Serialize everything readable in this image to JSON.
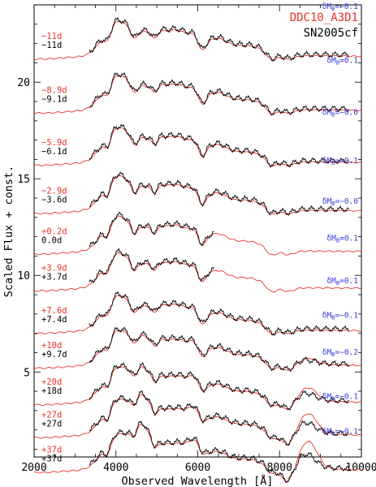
{
  "chart_data": {
    "type": "line",
    "xlabel": "Observed Wavelength  [Å]",
    "ylabel": "Scaled Flux + const.",
    "xlim": [
      2000,
      10000
    ],
    "ylim": [
      0.6,
      24.0
    ],
    "x_ticks": [
      2000,
      4000,
      6000,
      8000,
      10000
    ],
    "y_ticks": [
      5,
      10,
      15,
      20
    ],
    "legend": [
      {
        "name": "DDC10_A3D1",
        "color": "#e8322b"
      },
      {
        "name": "SN2005cf",
        "color": "#000000"
      }
    ],
    "legend_position": "top-right",
    "colors": {
      "model": "#e8322b",
      "observed": "#000000",
      "delta": "#3c3cd6"
    },
    "epochs": [
      {
        "model_phase": "−11d",
        "obs_phase": "−11d",
        "delta_mb": "−0.1",
        "delta_display": "δM",
        "offset": 21.2,
        "obs_range": [
          3350,
          9700
        ]
      },
      {
        "model_phase": "−8.9d",
        "obs_phase": "−9.1d",
        "delta_mb": "0.1",
        "delta_display": "δM",
        "offset": 18.4,
        "obs_range": [
          3350,
          9700
        ]
      },
      {
        "model_phase": "−5.9d",
        "obs_phase": "−6.1d",
        "delta_mb": "−0.0",
        "delta_display": "δM",
        "offset": 15.7,
        "obs_range": [
          3350,
          9700
        ]
      },
      {
        "model_phase": "−2.9d",
        "obs_phase": "−3.6d",
        "delta_mb": "−0.1",
        "delta_display": "δM",
        "offset": 13.2,
        "obs_range": [
          3350,
          9700
        ]
      },
      {
        "model_phase": "+0.2d",
        "obs_phase": "0.0d",
        "delta_mb": "−0.0",
        "delta_display": "δM",
        "offset": 11.1,
        "obs_range": [
          3350,
          6400
        ]
      },
      {
        "model_phase": "+3.9d",
        "obs_phase": "+3.7d",
        "delta_mb": "0.1",
        "delta_display": "δM",
        "offset": 9.2,
        "obs_range": [
          3350,
          6400
        ]
      },
      {
        "model_phase": "+7.6d",
        "obs_phase": "+7.4d",
        "delta_mb": "0.1",
        "delta_display": "δM",
        "offset": 7.0,
        "obs_range": [
          3350,
          9700
        ]
      },
      {
        "model_phase": "+10d",
        "obs_phase": "+9.7d",
        "delta_mb": "−0.1",
        "delta_display": "δM",
        "offset": 5.2,
        "obs_range": [
          3350,
          9700
        ]
      },
      {
        "model_phase": "+20d",
        "obs_phase": "+18d",
        "delta_mb": "−0.2",
        "delta_display": "δM",
        "offset": 3.3,
        "obs_range": [
          3350,
          9700
        ]
      },
      {
        "model_phase": "+27d",
        "obs_phase": "+27d",
        "delta_mb": "−0.1",
        "delta_display": "δM",
        "offset": 1.6,
        "obs_range": [
          3350,
          9700
        ]
      },
      {
        "model_phase": "+37d",
        "obs_phase": "+37d",
        "delta_mb": "−0.1",
        "delta_display": "δM",
        "offset": -0.2,
        "obs_range": [
          3350,
          9700
        ]
      }
    ]
  }
}
